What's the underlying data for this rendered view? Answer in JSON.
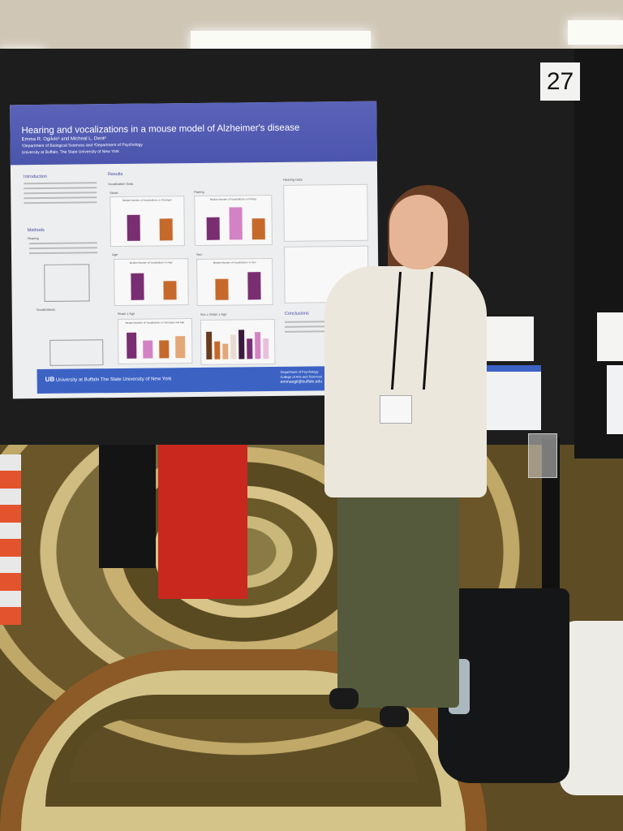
{
  "booth_number": "27",
  "poster": {
    "title": "Hearing and vocalizations in a mouse model of Alzheimer's disease",
    "authors": "Emma R. Ogilvie¹ and Micheal L. Dent²",
    "departments": "¹Department of Biological Sciences and ²Department of Psychology",
    "university": "University at Buffalo, The State University of New York",
    "sections": {
      "introduction": "Introduction",
      "methods": "Methods",
      "hearing": "Hearing",
      "vocalizations": "Vocalizations",
      "results": "Results",
      "vocalization_data": "Vocalization Data",
      "strain": "Strain",
      "pairing": "Pairing",
      "age": "Age",
      "sex": "Sex",
      "strain_age": "Strain x Age",
      "sex_strain_age": "Sex x Strain x Age",
      "hearing_data": "Hearing Data",
      "conclusions": "Conclusions"
    },
    "charts": {
      "strain": "Median Number of Vocalizations vs Genotype",
      "pairing": "Median Number of Vocalizations vs Pairing",
      "age": "Median Number of Vocalizations vs Age",
      "sex": "Median Number of Vocalizations vs Sex",
      "strain_age": "Median Number of Vocalizations vs Genotype and Age"
    },
    "footer": {
      "logo": "UB",
      "university": "University at Buffalo The State University of New York",
      "dept": "Department of Psychology",
      "college": "College of Arts and Sciences",
      "email": "emmaogil@buffalo.edu"
    },
    "colors": {
      "header": "#5a63b8",
      "footer": "#3c62c4",
      "purple": "#7a2e72",
      "orange": "#c66a2c",
      "pink": "#d383c4"
    }
  }
}
